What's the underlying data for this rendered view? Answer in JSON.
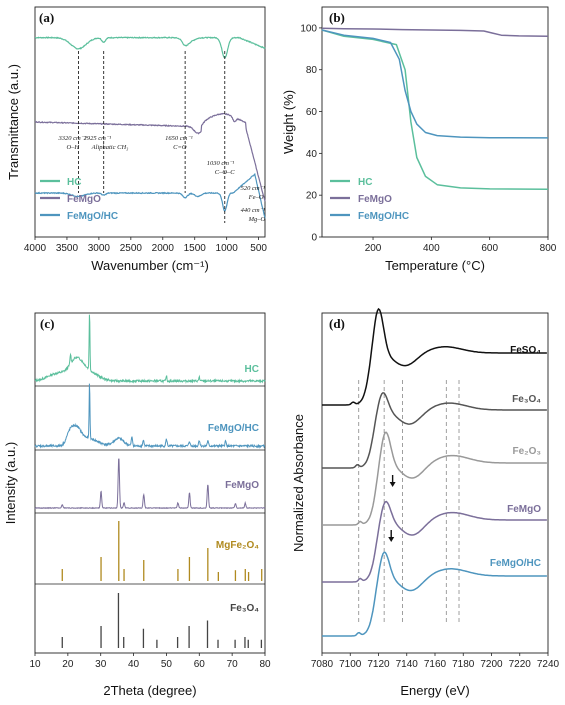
{
  "colors": {
    "hc": "#5bbf9c",
    "femgo": "#7b6f9a",
    "femgohc": "#4e95be",
    "mgfe2o4": "#b08a1f",
    "fe3o4": "#444444",
    "feso4": "#111111",
    "fe3o4_xanes": "#555555",
    "fe2o3": "#999999",
    "xfemgo": "#7b6f9a",
    "xfemgohc": "#4e95be"
  },
  "chart_data": [
    {
      "panel": "(a)",
      "type": "line",
      "xlabel": "Wavenumber (cm⁻¹)",
      "ylabel": "Transmittance (a.u.)",
      "xlim": [
        4000,
        400
      ],
      "xticks": [
        "4000",
        "3500",
        "3000",
        "2500",
        "2000",
        "1500",
        "1000",
        "500"
      ],
      "series": [
        {
          "name": "HC",
          "offset": 0.82
        },
        {
          "name": "FeMgO",
          "offset": 0.5
        },
        {
          "name": "FeMgO/HC",
          "offset": 0.18
        }
      ],
      "annotations": [
        {
          "x": 3320,
          "l1": "3320 cm⁻¹",
          "l2": "O–H"
        },
        {
          "x": 2925,
          "l1": "2925 cm⁻¹",
          "l2": "Aliphatic CH₃"
        },
        {
          "x": 1650,
          "l1": "1650 cm⁻¹",
          "l2": "C=O"
        },
        {
          "x": 1030,
          "l1": "1030 cm⁻¹",
          "l2": "C–O–C"
        },
        {
          "x": 520,
          "l1": "520 cm⁻¹",
          "l2": "Fe–O"
        },
        {
          "x": 440,
          "l1": "440 cm⁻¹",
          "l2": "Mg–O"
        }
      ],
      "legend": [
        "HC",
        "FeMgO",
        "FeMgO/HC"
      ]
    },
    {
      "panel": "(b)",
      "type": "line",
      "xlabel": "Temperature (°C)",
      "ylabel": "Weight (%)",
      "xlim": [
        25,
        800
      ],
      "ylim": [
        0,
        110
      ],
      "xticks": [
        "200",
        "400",
        "600",
        "800"
      ],
      "yticks": [
        "0",
        "20",
        "40",
        "60",
        "80",
        "100"
      ],
      "series": [
        {
          "name": "HC",
          "x": [
            25,
            100,
            200,
            280,
            310,
            330,
            350,
            380,
            420,
            500,
            600,
            800
          ],
          "y": [
            99,
            96,
            94.5,
            92,
            80,
            55,
            38,
            29,
            25,
            23.5,
            23,
            22.8
          ]
        },
        {
          "name": "FeMgO",
          "x": [
            25,
            100,
            200,
            300,
            400,
            500,
            580,
            610,
            640,
            700,
            800
          ],
          "y": [
            99.8,
            99.6,
            99.5,
            99.2,
            99,
            98.8,
            98.5,
            97.5,
            96.5,
            96.2,
            96
          ]
        },
        {
          "name": "FeMgO/HC",
          "x": [
            25,
            100,
            200,
            260,
            290,
            310,
            330,
            350,
            380,
            420,
            500,
            600,
            800
          ],
          "y": [
            99,
            96.5,
            95,
            93,
            85,
            70,
            60,
            54,
            50,
            48.5,
            47.8,
            47.5,
            47.4
          ]
        }
      ],
      "legend": [
        "HC",
        "FeMgO",
        "FeMgO/HC"
      ]
    },
    {
      "panel": "(c)",
      "type": "line",
      "xlabel": "2Theta (degree)",
      "ylabel": "Intensity (a.u.)",
      "xlim": [
        10,
        80
      ],
      "xticks": [
        "10",
        "20",
        "30",
        "40",
        "50",
        "60",
        "70",
        "80"
      ],
      "series": [
        {
          "name": "HC"
        },
        {
          "name": "FeMgO/HC"
        },
        {
          "name": "FeMgO"
        },
        {
          "name": "MgFe₂O₄",
          "type": "stick",
          "x": [
            18.3,
            30.1,
            35.5,
            37.1,
            43.1,
            53.5,
            57.0,
            62.6,
            65.8,
            71.0,
            74.0,
            75.0,
            79.0
          ],
          "h": [
            0.2,
            0.4,
            1.0,
            0.2,
            0.35,
            0.2,
            0.4,
            0.55,
            0.15,
            0.18,
            0.2,
            0.15,
            0.2
          ]
        },
        {
          "name": "Fe₃O₄",
          "type": "stick",
          "x": [
            18.3,
            30.1,
            35.4,
            37.0,
            43.0,
            47.1,
            53.4,
            56.9,
            62.5,
            65.7,
            70.9,
            73.9,
            74.9,
            78.9
          ],
          "h": [
            0.2,
            0.4,
            1.0,
            0.2,
            0.35,
            0.15,
            0.2,
            0.4,
            0.5,
            0.15,
            0.15,
            0.2,
            0.15,
            0.15
          ]
        }
      ]
    },
    {
      "panel": "(d)",
      "type": "line",
      "xlabel": "Energy (eV)",
      "ylabel": "Normalized Absorbance",
      "xlim": [
        7080,
        7240
      ],
      "xticks": [
        "7080",
        "7100",
        "7120",
        "7140",
        "7160",
        "7180",
        "7200",
        "7220",
        "7240"
      ],
      "series": [
        {
          "name": "FeSO₄"
        },
        {
          "name": "Fe₃O₄"
        },
        {
          "name": "Fe₂O₃"
        },
        {
          "name": "FeMgO"
        },
        {
          "name": "FeMgO/HC"
        }
      ],
      "reference_lines": [
        7106,
        7124,
        7137,
        7168,
        7177
      ]
    }
  ]
}
